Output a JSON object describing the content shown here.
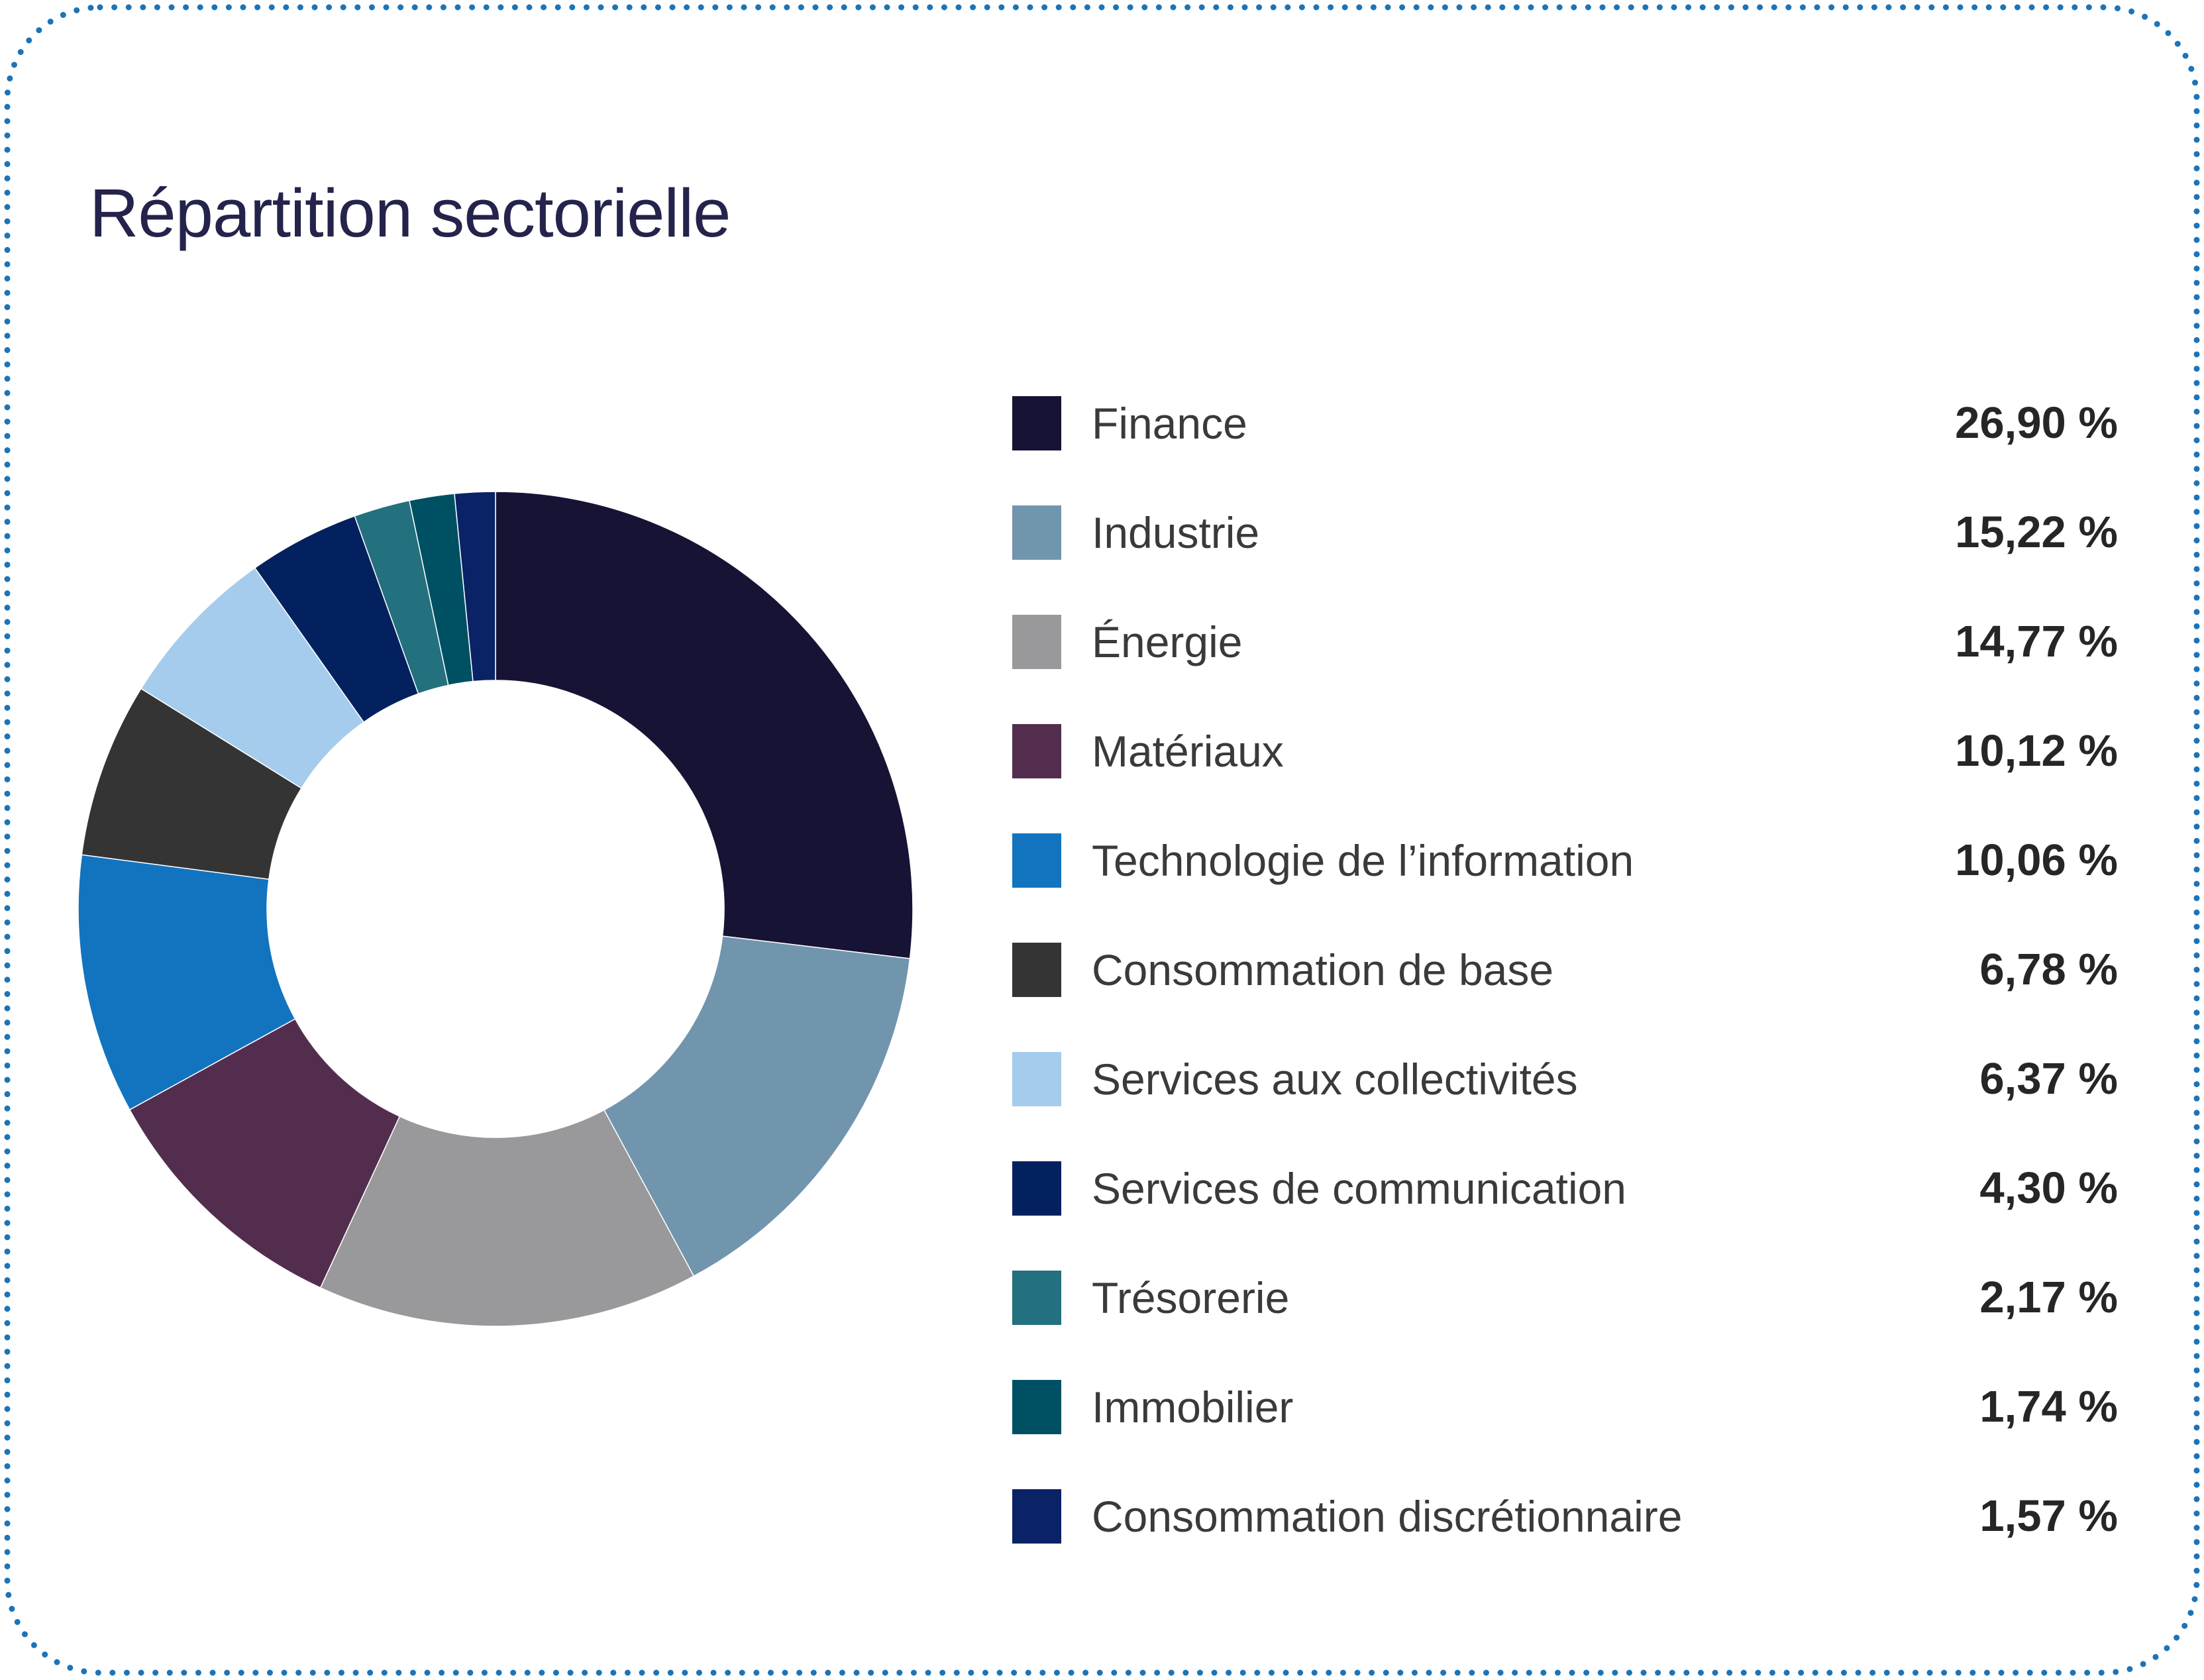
{
  "page": {
    "background": "#ffffff",
    "border_color": "#1b74b8"
  },
  "header": {
    "title": "Répartition sectorielle",
    "title_color": "#23234b"
  },
  "chart_data": {
    "type": "pie",
    "subtype": "donut",
    "title": "Répartition sectorielle",
    "legend_position": "right",
    "start_angle_deg": 0,
    "direction": "clockwise",
    "inner_radius_ratio": 0.548,
    "categories": [
      "Finance",
      "Industrie",
      "Énergie",
      "Matériaux",
      "Technologie de l’information",
      "Consommation de base",
      "Services aux collectivités",
      "Services de communication",
      "Trésorerie",
      "Immobilier",
      "Consommation discrétionnaire"
    ],
    "values": [
      26.9,
      15.22,
      14.77,
      10.12,
      10.06,
      6.78,
      6.37,
      4.3,
      2.17,
      1.74,
      1.57
    ],
    "value_labels": [
      "26,90 %",
      "15,22 %",
      "14,77 %",
      "10,12 %",
      "10,06 %",
      "6,78 %",
      "6,37 %",
      "4,30 %",
      "2,17 %",
      "1,74 %",
      "1,57 %"
    ],
    "colors": [
      "#171335",
      "#7295ae",
      "#99999b",
      "#532d4e",
      "#1274bf",
      "#343434",
      "#a5cced",
      "#03215f",
      "#23707e",
      "#005064",
      "#0a2266"
    ]
  }
}
